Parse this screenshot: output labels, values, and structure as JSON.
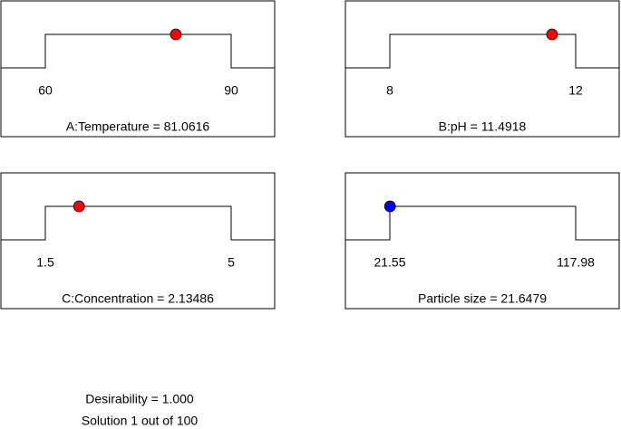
{
  "chart_data": [
    {
      "type": "ramp",
      "xlim": [
        60,
        90
      ],
      "xticks": [
        60,
        90
      ],
      "value": 81.0616,
      "value_label": "A:Temperature = 81.0616",
      "color": "#ff0000"
    },
    {
      "type": "ramp",
      "xlim": [
        8,
        12
      ],
      "xticks": [
        8,
        12
      ],
      "value": 11.4918,
      "value_label": "B:pH = 11.4918",
      "color": "#ff0000"
    },
    {
      "type": "ramp",
      "xlim": [
        1.5,
        5
      ],
      "xticks": [
        1.5,
        5
      ],
      "value": 2.13486,
      "value_label": "C:Concentration = 2.13486",
      "color": "#ff0000"
    },
    {
      "type": "ramp",
      "xlim": [
        21.55,
        117.98
      ],
      "xticks": [
        21.55,
        117.98
      ],
      "value": 21.6479,
      "value_label": "Particle size = 21.6479",
      "color": "#0000ff"
    }
  ],
  "footer": [
    "Desirability = 1.000",
    "Solution 1 out of 100"
  ]
}
